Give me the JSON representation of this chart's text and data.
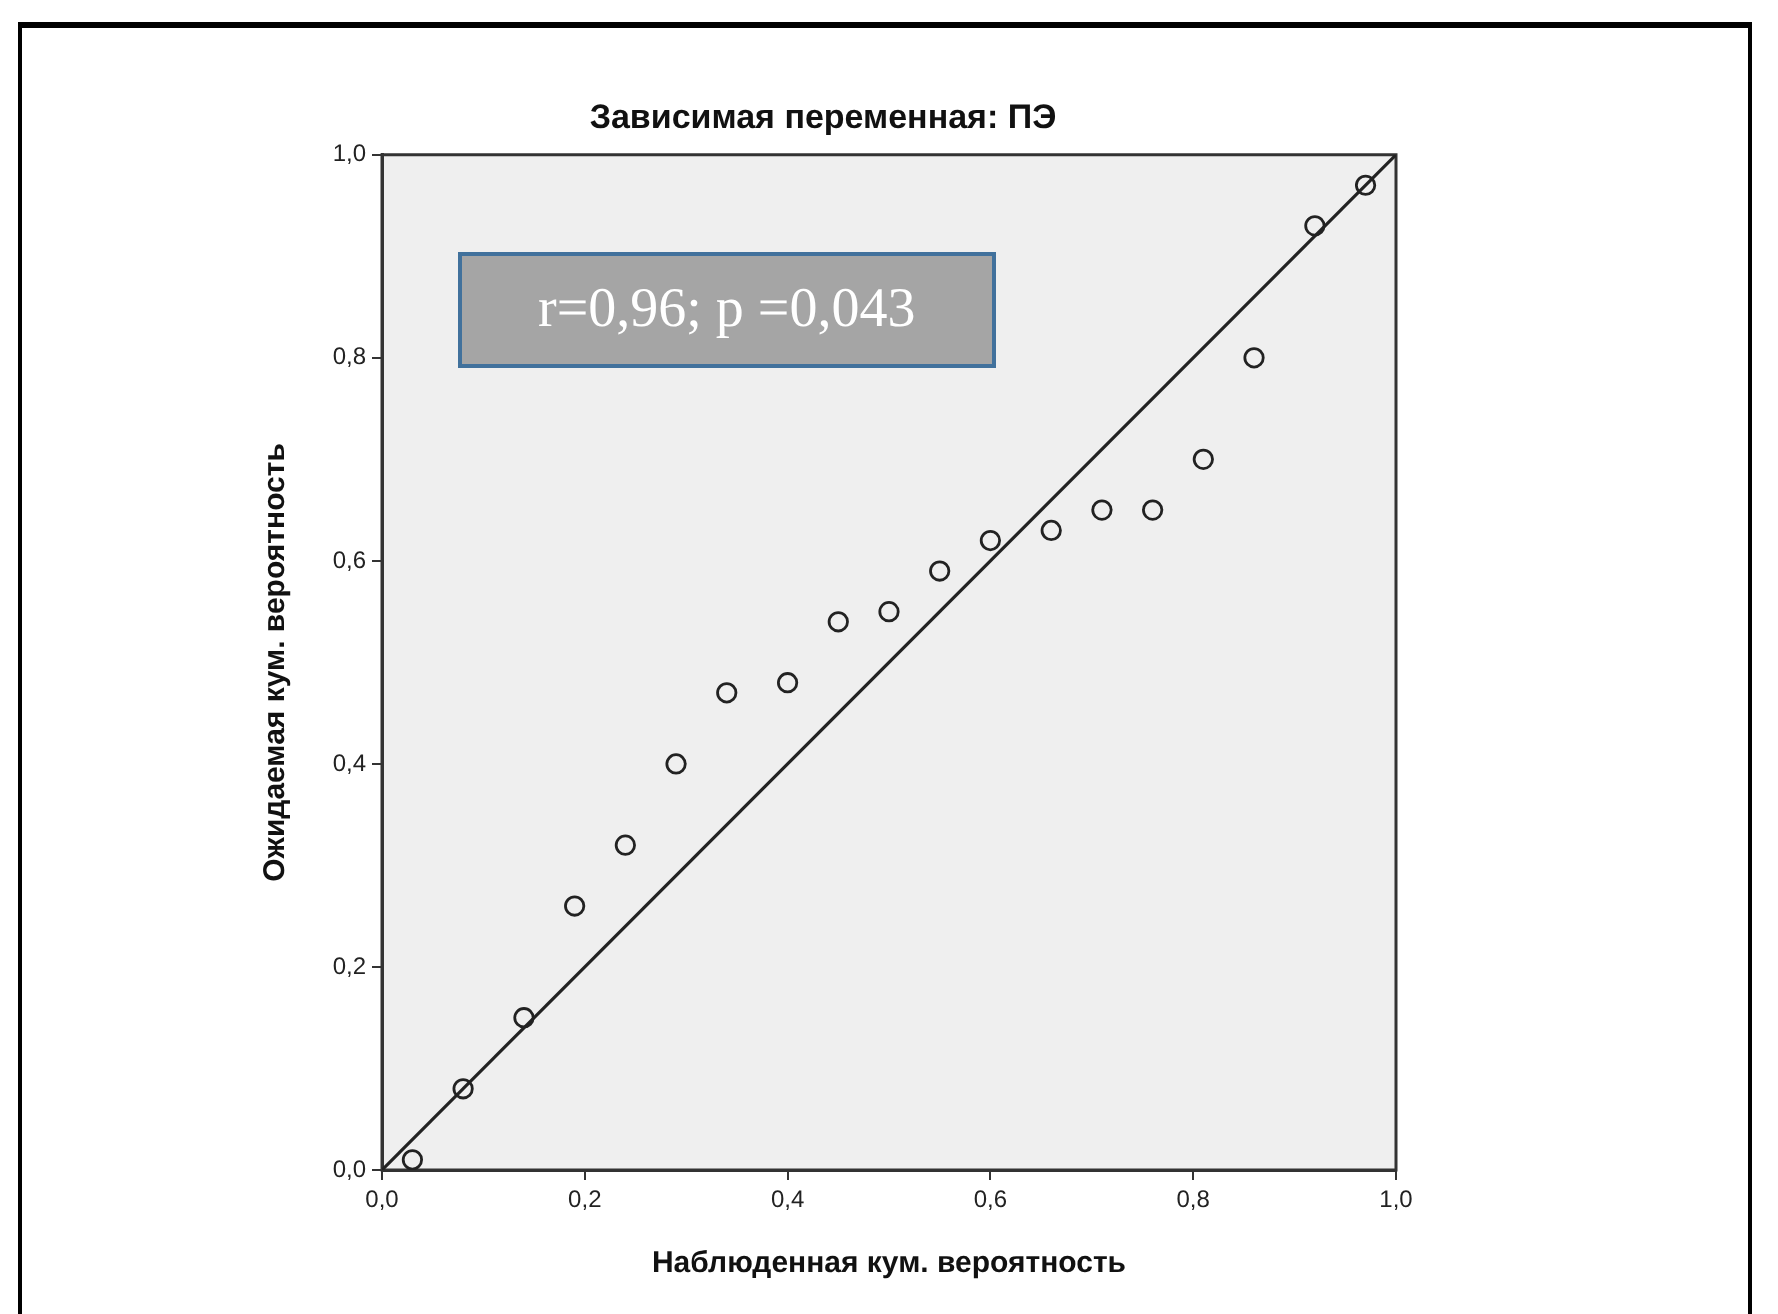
{
  "chart_data": {
    "type": "scatter",
    "title": "Зависимая переменная: ПЭ",
    "xlabel": "Наблюденная кум. вероятность",
    "ylabel": "Ожидаемая кум. вероятность",
    "annotations": [
      "r=0,96; p =0,043"
    ],
    "series": [
      {
        "color": "#222222",
        "marker": "circle",
        "x": [
          0.03,
          0.08,
          0.14,
          0.19,
          0.24,
          0.29,
          0.34,
          0.4,
          0.45,
          0.5,
          0.55,
          0.6,
          0.66,
          0.71,
          0.76,
          0.81,
          0.86,
          0.92,
          0.97
        ],
        "values": [
          0.01,
          0.08,
          0.15,
          0.26,
          0.32,
          0.4,
          0.47,
          0.48,
          0.54,
          0.55,
          0.59,
          0.62,
          0.63,
          0.65,
          0.65,
          0.7,
          0.8,
          0.93,
          0.97
        ]
      },
      {
        "type": "line",
        "color": "#222222",
        "marker": "none",
        "line_style": "solid",
        "x": [
          0,
          1
        ],
        "values": [
          0,
          1
        ]
      }
    ],
    "xlim": [
      0,
      1
    ],
    "ylim": [
      0,
      1
    ],
    "xticks": [
      {
        "value": 0,
        "label": "0,0"
      },
      {
        "value": 0.2,
        "label": "0,2"
      },
      {
        "value": 0.4,
        "label": "0,4"
      },
      {
        "value": 0.6,
        "label": "0,6"
      },
      {
        "value": 0.8,
        "label": "0,8"
      },
      {
        "value": 1,
        "label": "1,0"
      }
    ],
    "yticks": [
      {
        "value": 0,
        "label": "0,0"
      },
      {
        "value": 0.2,
        "label": "0,2"
      },
      {
        "value": 0.4,
        "label": "0,4"
      },
      {
        "value": 0.6,
        "label": "0,6"
      },
      {
        "value": 0.8,
        "label": "0,8"
      },
      {
        "value": 1,
        "label": "1,0"
      }
    ],
    "grid": false,
    "legend": false
  }
}
